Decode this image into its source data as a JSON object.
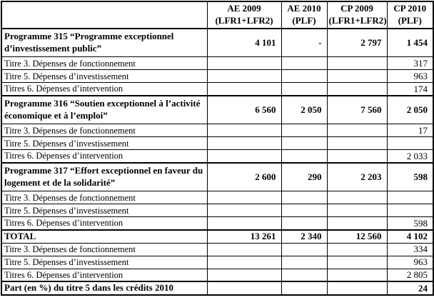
{
  "document": {
    "kind": "budget-credits-table",
    "language": "fr",
    "text_color": "#000000",
    "border_color": "#000000",
    "background_color": "#ffffff"
  },
  "table": {
    "columns": [
      {
        "lines": [
          "",
          ""
        ]
      },
      {
        "lines": [
          "AE 2009",
          "(LFR1+LFR2)"
        ]
      },
      {
        "lines": [
          "AE 2010",
          "(PLF)"
        ]
      },
      {
        "lines": [
          "CP 2009",
          "(LFR1+LFR2)"
        ]
      },
      {
        "lines": [
          "CP 2010",
          "(PLF)"
        ]
      }
    ],
    "rows": [
      {
        "style": "program",
        "label": "Programme 315 “Programme exceptionnel d’investissement public”",
        "values": [
          "4 101",
          "-",
          "2 797",
          "1 454"
        ]
      },
      {
        "style": "item",
        "label": "Titre 3. Dépenses de fonctionnement",
        "values": [
          "",
          "",
          "",
          "317"
        ]
      },
      {
        "style": "item",
        "label": "Titre 5. Dépenses d’investissement",
        "values": [
          "",
          "",
          "",
          "963"
        ]
      },
      {
        "style": "item",
        "label": "Titres 6. Dépenses d’intervention",
        "values": [
          "",
          "",
          "",
          "174"
        ]
      },
      {
        "style": "program",
        "label": "Programme 316 “Soutien exceptionnel à l’activité économique et à l’emploi”",
        "values": [
          "6 560",
          "2 050",
          "7 560",
          "2 050"
        ]
      },
      {
        "style": "item",
        "label": "Titre 3. Dépenses de fonctionnement",
        "values": [
          "",
          "",
          "",
          "17"
        ]
      },
      {
        "style": "item",
        "label": "Titre 5. Dépenses d’investissement",
        "values": [
          "",
          "",
          "",
          ""
        ]
      },
      {
        "style": "item",
        "label": "Titres 6. Dépenses d’intervention",
        "values": [
          "",
          "",
          "",
          "2 033"
        ]
      },
      {
        "style": "program",
        "label": "Programme 317 “Effort exceptionnel en faveur du logement et de la solidarité”",
        "values": [
          "2 600",
          "290",
          "2 203",
          "598"
        ]
      },
      {
        "style": "item",
        "label": "Titre 3. Dépenses de fonctionnement",
        "values": [
          "",
          "",
          "",
          ""
        ]
      },
      {
        "style": "item",
        "label": "Titre 5. Dépenses d’investissement",
        "values": [
          "",
          "",
          "",
          ""
        ]
      },
      {
        "style": "item",
        "label": "Titres 6. Dépenses d’intervention",
        "values": [
          "",
          "",
          "",
          "598"
        ]
      },
      {
        "style": "total",
        "label": "TOTAL",
        "values": [
          "13 261",
          "2 340",
          "12 560",
          "4 102"
        ]
      },
      {
        "style": "item",
        "label": "Titre 3. Dépenses de fonctionnement",
        "values": [
          "",
          "",
          "",
          "334"
        ]
      },
      {
        "style": "item",
        "label": "Titre 5. Dépenses d’investissement",
        "values": [
          "",
          "",
          "",
          "963"
        ]
      },
      {
        "style": "item",
        "label": "Titres 6. Dépenses d’intervention",
        "values": [
          "",
          "",
          "",
          "2 805"
        ]
      },
      {
        "style": "part",
        "label": "Part (en %) du titre 5 dans les crédits 2010",
        "values": [
          "",
          "",
          "",
          "24"
        ]
      }
    ]
  }
}
